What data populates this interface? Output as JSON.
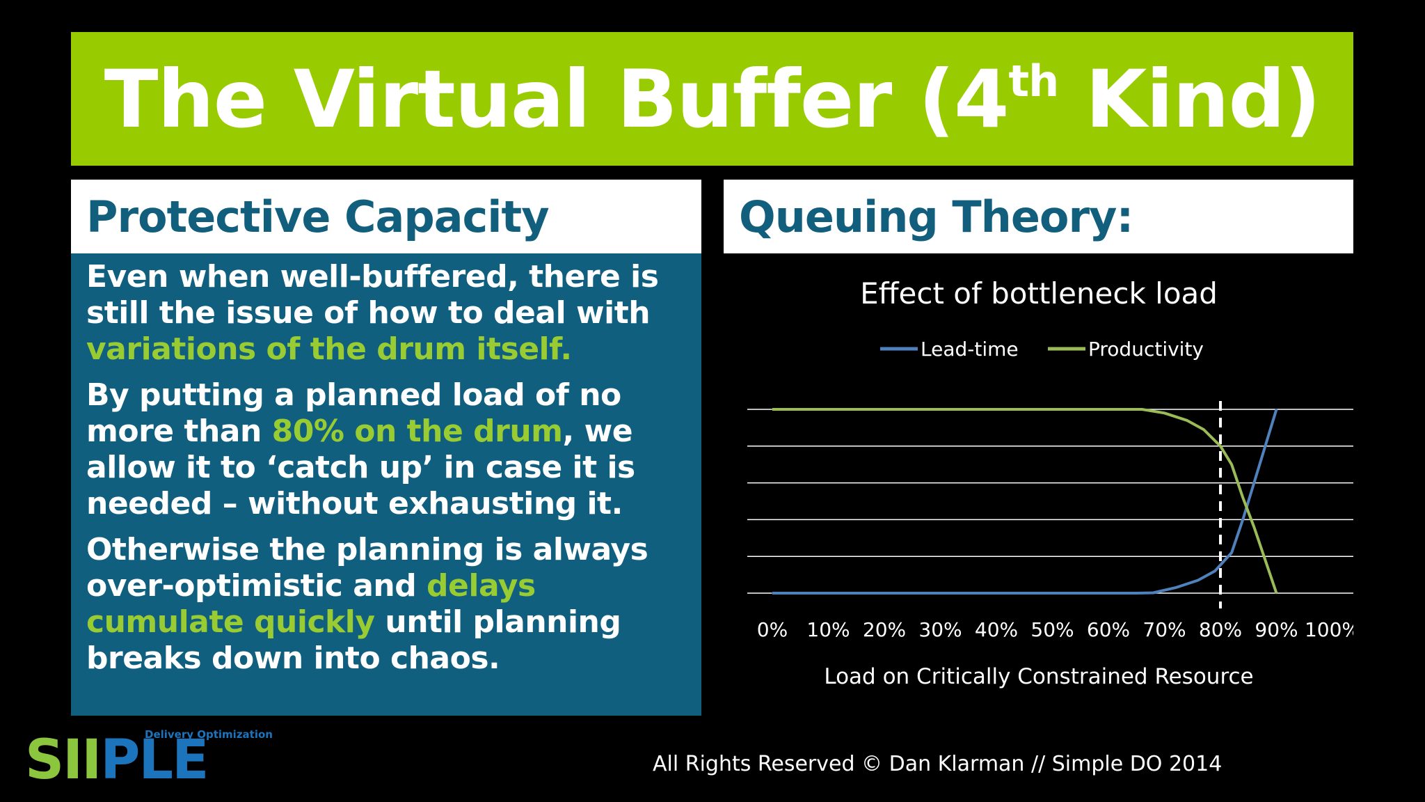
{
  "title": {
    "main": "The Virtual Buffer (4",
    "sup": "th",
    "tail": " Kind)"
  },
  "left_panel": {
    "heading": "Protective Capacity",
    "p1": {
      "pre": "Even when well-buffered, there is still the issue of how to deal with ",
      "hl": "variations of the drum itself."
    },
    "p2": {
      "pre": "By putting a planned load of no more than ",
      "hl": "80% on the drum",
      "post": ", we allow it to ‘catch up’ in case it is needed – without exhausting it."
    },
    "p3": {
      "pre": "Otherwise the planning is always over-optimistic and ",
      "hl": "delays cumulate quickly",
      "post": " until planning breaks down into chaos."
    }
  },
  "right_panel": {
    "heading": "Queuing Theory:"
  },
  "chart_data": {
    "type": "line",
    "title": "Effect of bottleneck load",
    "xlabel": "Load on Critically Constrained Resource",
    "ylabel": "",
    "categories": [
      "0%",
      "10%",
      "20%",
      "30%",
      "40%",
      "50%",
      "60%",
      "70%",
      "80%",
      "90%",
      "100%"
    ],
    "xlim": [
      0,
      100
    ],
    "ylim": [
      0,
      5
    ],
    "gridlines": true,
    "y_tick_labels": false,
    "legend_position": "top-center",
    "reference_line": {
      "x": 80,
      "style": "dashed",
      "color": "#ffffff"
    },
    "series": [
      {
        "name": "Lead-time",
        "color": "#4f81bd",
        "points": [
          [
            0,
            0
          ],
          [
            10,
            0
          ],
          [
            20,
            0
          ],
          [
            30,
            0
          ],
          [
            40,
            0
          ],
          [
            50,
            0
          ],
          [
            60,
            0
          ],
          [
            65,
            0
          ],
          [
            68,
            0.01
          ],
          [
            72,
            0.15
          ],
          [
            76,
            0.35
          ],
          [
            79,
            0.6
          ],
          [
            82,
            1.1
          ],
          [
            84,
            2.0
          ],
          [
            86,
            3.0
          ],
          [
            88,
            4.0
          ],
          [
            90,
            5.0
          ]
        ]
      },
      {
        "name": "Productivity",
        "color": "#9bbb59",
        "points": [
          [
            0,
            5
          ],
          [
            10,
            5
          ],
          [
            20,
            5
          ],
          [
            30,
            5
          ],
          [
            40,
            5
          ],
          [
            50,
            5
          ],
          [
            60,
            5
          ],
          [
            66,
            5
          ],
          [
            70,
            4.9
          ],
          [
            74,
            4.7
          ],
          [
            77,
            4.45
          ],
          [
            80,
            4.0
          ],
          [
            82,
            3.5
          ],
          [
            84,
            2.6
          ],
          [
            86,
            1.8
          ],
          [
            88,
            0.9
          ],
          [
            90,
            0
          ]
        ]
      }
    ]
  },
  "logo": {
    "letters_green1": "SI",
    "letters_green2": "I",
    "letters_blue": "PLE",
    "subtitle": "Delivery Optimization"
  },
  "footer": {
    "text": "All Rights Reserved © Dan Klarman // Simple DO 2014"
  }
}
